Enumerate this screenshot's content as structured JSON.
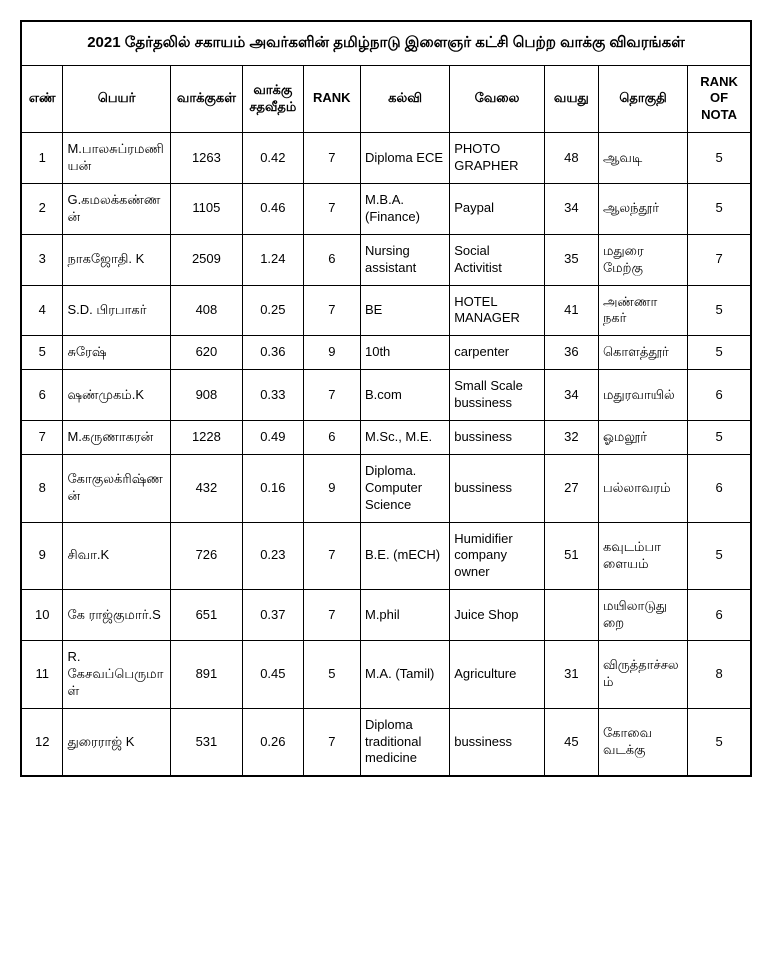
{
  "table": {
    "title": "2021 தேர்தலில் சகாயம் அவர்களின் தமிழ்நாடு இளைஞர் கட்சி பெற்ற வாக்கு விவரங்கள்",
    "columns": [
      {
        "key": "no",
        "label": "எண்",
        "width": 30,
        "align": "center"
      },
      {
        "key": "name",
        "label": "பெயர்",
        "width": 92,
        "align": "left"
      },
      {
        "key": "votes",
        "label": "வாக்குகள்",
        "width": 55,
        "align": "center"
      },
      {
        "key": "pct",
        "label": "வாக்கு சதவீதம்",
        "width": 48,
        "align": "center"
      },
      {
        "key": "rank",
        "label": "RANK",
        "width": 45,
        "align": "center"
      },
      {
        "key": "edu",
        "label": "கல்வி",
        "width": 75,
        "align": "left"
      },
      {
        "key": "job",
        "label": "வேலை",
        "width": 80,
        "align": "left"
      },
      {
        "key": "age",
        "label": "வயது",
        "width": 42,
        "align": "center"
      },
      {
        "key": "const",
        "label": "தொகுதி",
        "width": 75,
        "align": "left"
      },
      {
        "key": "nota",
        "label": "RANK OF NOTA",
        "width": 50,
        "align": "center"
      }
    ],
    "rows": [
      {
        "no": "1",
        "name": "M.பாலசுப்ரமணியன்",
        "votes": "1263",
        "pct": "0.42",
        "rank": "7",
        "edu": "Diploma ECE",
        "job": "PHOTO GRAPHER",
        "age": "48",
        "const": "ஆவடி",
        "nota": "5"
      },
      {
        "no": "2",
        "name": "G.கமலக்கண்ணன்",
        "votes": "1105",
        "pct": "0.46",
        "rank": "7",
        "edu": "M.B.A. (Finance)",
        "job": "Paypal",
        "age": "34",
        "const": "ஆலந்தூர்",
        "nota": "5"
      },
      {
        "no": "3",
        "name": "நாகஜோதி. K",
        "votes": "2509",
        "pct": "1.24",
        "rank": "6",
        "edu": "Nursing assistant",
        "job": "Social Activitist",
        "age": "35",
        "const": "மதுரை மேற்கு",
        "nota": "7"
      },
      {
        "no": "4",
        "name": "S.D. பிரபாகர்",
        "votes": "408",
        "pct": "0.25",
        "rank": "7",
        "edu": "BE",
        "job": "HOTEL MANAGER",
        "age": "41",
        "const": "அண்ணா நகர்",
        "nota": "5"
      },
      {
        "no": "5",
        "name": "சுரேஷ்",
        "votes": "620",
        "pct": "0.36",
        "rank": "9",
        "edu": "10th",
        "job": "carpenter",
        "age": "36",
        "const": "கொளத்தூர்",
        "nota": "5"
      },
      {
        "no": "6",
        "name": "ஷண்முகம்.K",
        "votes": "908",
        "pct": "0.33",
        "rank": "7",
        "edu": "B.com",
        "job": "Small Scale bussiness",
        "age": "34",
        "const": "மதுரவாயில்",
        "nota": "6"
      },
      {
        "no": "7",
        "name": "M.கருணாகரன்",
        "votes": "1228",
        "pct": "0.49",
        "rank": "6",
        "edu": "M.Sc., M.E.",
        "job": "bussiness",
        "age": "32",
        "const": "ஓமலூர்",
        "nota": "5"
      },
      {
        "no": "8",
        "name": "கோகுலக்ரிஷ்ணன்",
        "votes": "432",
        "pct": "0.16",
        "rank": "9",
        "edu": "Diploma. Computer Science",
        "job": "bussiness",
        "age": "27",
        "const": "பல்லாவரம்",
        "nota": "6"
      },
      {
        "no": "9",
        "name": "சிவா.K",
        "votes": "726",
        "pct": "0.23",
        "rank": "7",
        "edu": "B.E. (mECH)",
        "job": "Humidifier company owner",
        "age": "51",
        "const": "கவுடம்பாளையம்",
        "nota": "5"
      },
      {
        "no": "10",
        "name": "கே ராஜ்குமார்.S",
        "votes": "651",
        "pct": "0.37",
        "rank": "7",
        "edu": "M.phil",
        "job": "Juice Shop",
        "age": "",
        "const": "மயிலாடுதுறை",
        "nota": "6"
      },
      {
        "no": "11",
        "name": "R. கேசவப்பெருமாள்",
        "votes": "891",
        "pct": "0.45",
        "rank": "5",
        "edu": "M.A. (Tamil)",
        "job": "Agriculture",
        "age": "31",
        "const": "விருத்தாச்சலம்",
        "nota": "8"
      },
      {
        "no": "12",
        "name": "துரைராஜ் K",
        "votes": "531",
        "pct": "0.26",
        "rank": "7",
        "edu": "Diploma traditional medicine",
        "job": "bussiness",
        "age": "45",
        "const": "கோவை வடக்கு",
        "nota": "5"
      }
    ],
    "style": {
      "border_color": "#000000",
      "background_color": "#ffffff",
      "text_color": "#000000",
      "title_fontsize": 15,
      "header_fontsize": 13,
      "body_fontsize": 13,
      "font_family": "Arial"
    }
  }
}
